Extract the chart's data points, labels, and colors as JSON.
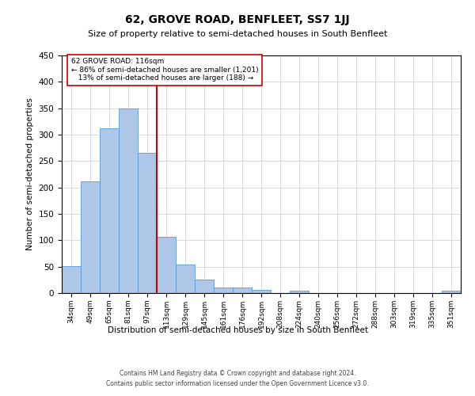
{
  "title": "62, GROVE ROAD, BENFLEET, SS7 1JJ",
  "subtitle": "Size of property relative to semi-detached houses in South Benfleet",
  "xlabel": "Distribution of semi-detached houses by size in South Benfleet",
  "ylabel": "Number of semi-detached properties",
  "footer_line1": "Contains HM Land Registry data © Crown copyright and database right 2024.",
  "footer_line2": "Contains public sector information licensed under the Open Government Licence v3.0.",
  "property_label": "62 GROVE ROAD: 116sqm",
  "pct_smaller": 86,
  "n_smaller": 1201,
  "pct_larger": 13,
  "n_larger": 188,
  "bin_labels": [
    "34sqm",
    "49sqm",
    "65sqm",
    "81sqm",
    "97sqm",
    "113sqm",
    "129sqm",
    "145sqm",
    "161sqm",
    "176sqm",
    "192sqm",
    "208sqm",
    "224sqm",
    "240sqm",
    "256sqm",
    "272sqm",
    "288sqm",
    "303sqm",
    "319sqm",
    "335sqm",
    "351sqm"
  ],
  "bar_heights": [
    51,
    212,
    312,
    350,
    265,
    106,
    54,
    26,
    11,
    11,
    6,
    0,
    4,
    0,
    0,
    0,
    0,
    0,
    0,
    0,
    4
  ],
  "bar_color": "#aec6e8",
  "bar_edge_color": "#5b9bd5",
  "vline_color": "#cc0000",
  "vline_bin_index": 5,
  "annotation_box_color": "#cc0000",
  "ylim": [
    0,
    450
  ],
  "yticks": [
    0,
    50,
    100,
    150,
    200,
    250,
    300,
    350,
    400,
    450
  ],
  "background_color": "#ffffff",
  "grid_color": "#cccccc"
}
